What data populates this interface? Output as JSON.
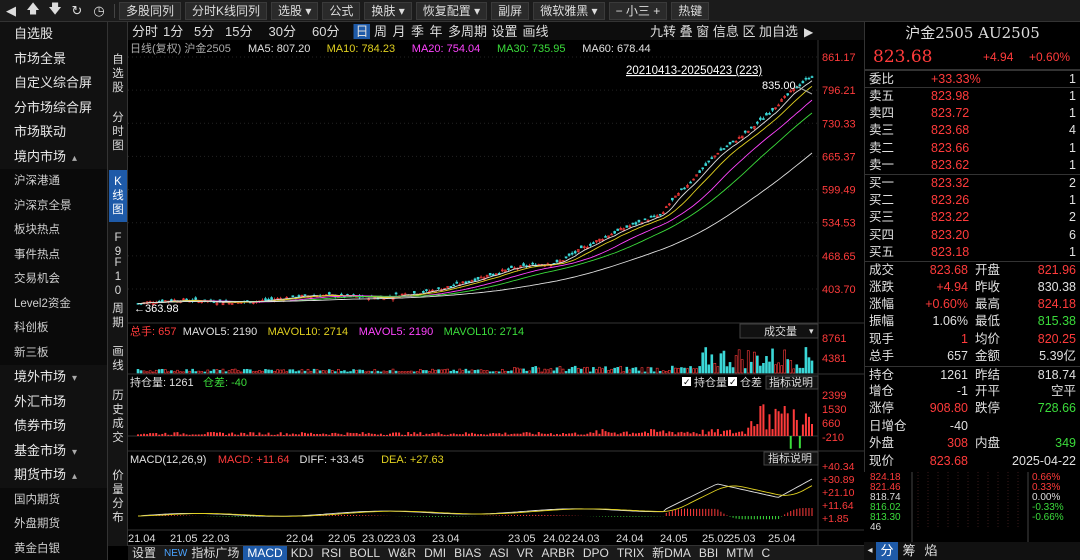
{
  "toolbar": {
    "buttons": [
      "多股同列",
      "分时K线同列",
      "选股",
      "公式",
      "换肤",
      "恢复配置",
      "副屏",
      "微软雅黑",
      "小三",
      "热键"
    ]
  },
  "sidebar": {
    "items": [
      {
        "label": "自选股"
      },
      {
        "label": "市场全景"
      },
      {
        "label": "自定义综合屏"
      },
      {
        "label": "分市场综合屏"
      },
      {
        "label": "市场联动"
      },
      {
        "label": "境内市场",
        "chev": "^"
      },
      {
        "label": "沪深港通",
        "sub": true
      },
      {
        "label": "沪深京全景",
        "sub": true
      },
      {
        "label": "板块热点",
        "sub": true
      },
      {
        "label": "事件热点",
        "sub": true
      },
      {
        "label": "交易机会",
        "sub": true
      },
      {
        "label": "Level2资金",
        "sub": true
      },
      {
        "label": "科创板",
        "sub": true
      },
      {
        "label": "新三板",
        "sub": true
      },
      {
        "label": "境外市场",
        "chev": "v"
      },
      {
        "label": "外汇市场"
      },
      {
        "label": "债券市场"
      },
      {
        "label": "基金市场",
        "chev": "v"
      },
      {
        "label": "期货市场",
        "chev": "^"
      },
      {
        "label": "国内期货",
        "sub": true
      },
      {
        "label": "外盘期货",
        "sub": true
      },
      {
        "label": "黄金白银",
        "sub": true
      }
    ]
  },
  "vcol": {
    "buttons": [
      "自选股",
      "分时图",
      "K线图",
      "F9",
      "F10",
      "周期",
      "画线",
      "历史成交",
      "价量分布"
    ]
  },
  "chart": {
    "periods": [
      "分时",
      "1分",
      "5分",
      "15分",
      "30分",
      "60分",
      "日",
      "周",
      "月",
      "季",
      "年",
      "多周期",
      "设置",
      "画线"
    ],
    "right_tools": "九转 叠 窗 信息 区 加自选",
    "ma_title": "日线(复权) 沪金2505",
    "ma_values": [
      {
        "text": "MA5: 807.20",
        "color": "#e0e0e0"
      },
      {
        "text": "MA10: 784.23",
        "color": "#e0d020"
      },
      {
        "text": "MA20: 754.04",
        "color": "#ff44ff"
      },
      {
        "text": "MA30: 735.95",
        "color": "#3bdc3b"
      },
      {
        "text": "MA60: 678.44",
        "color": "#e0e0e0"
      }
    ],
    "date_range": "20210413-20250423 (223)",
    "high_label": "835.00",
    "low_label": "363.98",
    "price_ticks": [
      "861.17",
      "796.21",
      "730.33",
      "665.37",
      "599.49",
      "534.53",
      "468.65",
      "403.70"
    ],
    "vol_header": [
      {
        "text": "总手: 657",
        "color": "#ff3b3b"
      },
      {
        "text": "MAVOL5: 2190",
        "color": "#e0e0e0"
      },
      {
        "text": "MAVOL10: 2714",
        "color": "#e0d020"
      },
      {
        "text": "MAVOL5: 2190",
        "color": "#ff44ff"
      },
      {
        "text": "MAVOL10: 2714",
        "color": "#3bdc3b"
      }
    ],
    "vol_selector": "成交量",
    "vol_ticks": [
      "8761",
      "4381"
    ],
    "oi_header": [
      {
        "text": "持仓量: 1261",
        "color": "#e0e0e0"
      },
      {
        "text": "仓差: -40",
        "color": "#3bdc3b"
      }
    ],
    "oi_checks": [
      "持仓量",
      "仓差"
    ],
    "oi_help": "指标说明",
    "oi_ticks": [
      "2399",
      "1530",
      "660",
      "-210"
    ],
    "macd_header": [
      {
        "text": "MACD(12,26,9)",
        "color": "#e0e0e0"
      },
      {
        "text": "MACD: +11.64",
        "color": "#ff3b3b"
      },
      {
        "text": "DIFF: +33.45",
        "color": "#e0e0e0"
      },
      {
        "text": "DEA: +27.63",
        "color": "#e0d020"
      }
    ],
    "macd_help": "指标说明",
    "macd_ticks": [
      "+40.34",
      "+30.89",
      "+21.10",
      "+11.64",
      "+1.85"
    ],
    "x_ticks": [
      "21.04",
      "21.05",
      "22.03",
      "22.04",
      "22.05",
      "23.02",
      "23.03",
      "23.04",
      "23.05",
      "24.02",
      "24.03",
      "24.04",
      "24.05",
      "25.02",
      "25.03",
      "25.04"
    ]
  },
  "quote": {
    "title": "沪金2505 AU2505",
    "price": "823.68",
    "change": "+4.94",
    "change_pct": "+0.60%",
    "weibi": {
      "label": "委比",
      "value": "+33.33%",
      "vol": "1"
    },
    "asks": [
      {
        "label": "卖五",
        "price": "823.98",
        "vol": "1"
      },
      {
        "label": "卖四",
        "price": "823.72",
        "vol": "1"
      },
      {
        "label": "卖三",
        "price": "823.68",
        "vol": "4"
      },
      {
        "label": "卖二",
        "price": "823.66",
        "vol": "1"
      },
      {
        "label": "卖一",
        "price": "823.62",
        "vol": "1"
      }
    ],
    "bids": [
      {
        "label": "买一",
        "price": "823.32",
        "vol": "2"
      },
      {
        "label": "买二",
        "price": "823.26",
        "vol": "1"
      },
      {
        "label": "买三",
        "price": "823.22",
        "vol": "2"
      },
      {
        "label": "买四",
        "price": "823.20",
        "vol": "6"
      },
      {
        "label": "买五",
        "price": "823.18",
        "vol": "1"
      }
    ],
    "stats": [
      {
        "l1": "成交",
        "v1": "823.68",
        "c1": "red",
        "l2": "开盘",
        "v2": "821.96",
        "c2": "red"
      },
      {
        "l1": "涨跌",
        "v1": "+4.94",
        "c1": "red",
        "l2": "昨收",
        "v2": "830.38",
        "c2": "wht"
      },
      {
        "l1": "涨幅",
        "v1": "+0.60%",
        "c1": "red",
        "l2": "最高",
        "v2": "824.18",
        "c2": "red"
      },
      {
        "l1": "振幅",
        "v1": "1.06%",
        "c1": "wht",
        "l2": "最低",
        "v2": "815.38",
        "c2": "green"
      },
      {
        "l1": "现手",
        "v1": "1",
        "c1": "red",
        "l2": "均价",
        "v2": "820.25",
        "c2": "red"
      },
      {
        "l1": "总手",
        "v1": "657",
        "c1": "wht",
        "l2": "金额",
        "v2": "5.39亿",
        "c2": "wht"
      }
    ],
    "stats2": [
      {
        "l1": "持仓",
        "v1": "1261",
        "c1": "wht",
        "l2": "昨结",
        "v2": "818.74",
        "c2": "wht"
      },
      {
        "l1": "增仓",
        "v1": "-1",
        "c1": "wht",
        "l2": "开平",
        "v2": "空平",
        "c2": "wht"
      },
      {
        "l1": "涨停",
        "v1": "908.80",
        "c1": "red",
        "l2": "跌停",
        "v2": "728.66",
        "c2": "green"
      },
      {
        "l1": "日增仓",
        "v1": "-40",
        "c1": "wht",
        "l2": "",
        "v2": "",
        "c2": "wht"
      },
      {
        "l1": "外盘",
        "v1": "308",
        "c1": "red",
        "l2": "内盘",
        "v2": "349",
        "c2": "green"
      },
      {
        "l1": "现价",
        "v1": "823.68",
        "c1": "red",
        "l2": "",
        "v2": "2025-04-22",
        "c2": "wht"
      }
    ]
  },
  "mini": {
    "left_ticks": [
      "824.18",
      "821.46",
      "818.74",
      "816.02",
      "813.30",
      "46"
    ],
    "right_ticks": [
      "0.66%",
      "0.33%",
      "0.00%",
      "-0.33%",
      "-0.66%"
    ]
  },
  "tabs": [
    "设置",
    "NEW",
    "指标广场",
    "MACD",
    "KDJ",
    "RSI",
    "BOLL",
    "W&R",
    "DMI",
    "BIAS",
    "ASI",
    "VR",
    "ARBR",
    "DPO",
    "TRIX",
    "新DMA",
    "BBI",
    "MTM",
    "C"
  ],
  "right_tabs": [
    "分",
    "筹",
    "焰"
  ]
}
